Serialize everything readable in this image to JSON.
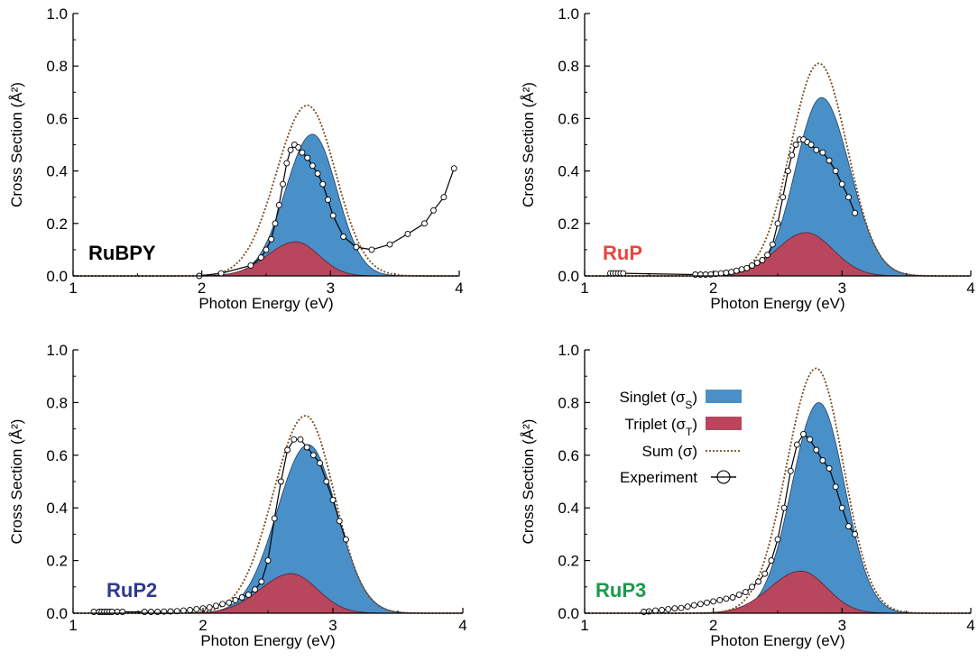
{
  "chart_data": [
    {
      "type": "area",
      "label": "RuBPY",
      "label_color": "#000000",
      "xlabel": "Photon Energy (eV)",
      "ylabel": "Cross Section (Å²)",
      "xlim": [
        1,
        4
      ],
      "ylim": [
        0,
        1.0
      ],
      "xticks": [
        "1",
        "2",
        "3",
        "4"
      ],
      "yticks": [
        "0.0",
        "0.2",
        "0.4",
        "0.6",
        "0.8",
        "1.0"
      ],
      "series": [
        {
          "kind": "singlet",
          "mu": 2.86,
          "s_left": 0.21,
          "s_right": 0.19,
          "peak": 0.54
        },
        {
          "kind": "triplet",
          "mu": 2.73,
          "s_left": 0.22,
          "s_right": 0.18,
          "peak": 0.13
        },
        {
          "kind": "sum",
          "mu": 2.82,
          "s_left": 0.24,
          "s_right": 0.22,
          "peak": 0.65
        }
      ],
      "experiment": {
        "x": [
          1.98,
          2.15,
          2.38,
          2.46,
          2.5,
          2.54,
          2.57,
          2.6,
          2.63,
          2.66,
          2.69,
          2.72,
          2.75,
          2.78,
          2.82,
          2.86,
          2.9,
          2.94,
          2.98,
          3.02,
          3.1,
          3.2,
          3.32,
          3.46,
          3.6,
          3.73,
          3.8,
          3.88,
          3.96
        ],
        "y": [
          0.0,
          0.01,
          0.04,
          0.07,
          0.1,
          0.14,
          0.2,
          0.27,
          0.35,
          0.43,
          0.48,
          0.5,
          0.49,
          0.47,
          0.45,
          0.42,
          0.39,
          0.35,
          0.29,
          0.23,
          0.15,
          0.11,
          0.1,
          0.12,
          0.16,
          0.2,
          0.25,
          0.3,
          0.41
        ]
      }
    },
    {
      "type": "area",
      "label": "RuP",
      "label_color": "#e8463f",
      "xlabel": "Photon Energy (eV)",
      "ylabel": "Cross Section (Å²)",
      "xlim": [
        1,
        4
      ],
      "ylim": [
        0,
        1.0
      ],
      "xticks": [
        "1",
        "2",
        "3",
        "4"
      ],
      "yticks": [
        "0.0",
        "0.2",
        "0.4",
        "0.6",
        "0.8",
        "1.0"
      ],
      "series": [
        {
          "kind": "singlet",
          "mu": 2.84,
          "s_left": 0.2,
          "s_right": 0.22,
          "peak": 0.68
        },
        {
          "kind": "triplet",
          "mu": 2.72,
          "s_left": 0.23,
          "s_right": 0.21,
          "peak": 0.165
        },
        {
          "kind": "sum",
          "mu": 2.82,
          "s_left": 0.22,
          "s_right": 0.22,
          "peak": 0.81
        }
      ],
      "experiment": {
        "x": [
          1.2,
          1.22,
          1.24,
          1.26,
          1.28,
          1.3,
          1.86,
          1.9,
          1.94,
          1.98,
          2.02,
          2.06,
          2.1,
          2.14,
          2.18,
          2.22,
          2.26,
          2.3,
          2.34,
          2.38,
          2.42,
          2.46,
          2.5,
          2.54,
          2.58,
          2.61,
          2.64,
          2.67,
          2.7,
          2.73,
          2.76,
          2.8,
          2.85,
          2.9,
          2.95,
          3.0,
          3.05,
          3.1
        ],
        "y": [
          0.01,
          0.01,
          0.01,
          0.01,
          0.01,
          0.01,
          0.005,
          0.005,
          0.005,
          0.006,
          0.008,
          0.01,
          0.012,
          0.015,
          0.02,
          0.025,
          0.03,
          0.04,
          0.05,
          0.06,
          0.08,
          0.12,
          0.2,
          0.3,
          0.4,
          0.46,
          0.5,
          0.52,
          0.52,
          0.51,
          0.5,
          0.48,
          0.47,
          0.44,
          0.4,
          0.35,
          0.3,
          0.24
        ]
      }
    },
    {
      "type": "area",
      "label": "RuP2",
      "label_color": "#2e3a8c",
      "xlabel": "Photon Energy (eV)",
      "ylabel": "Cross Section (Å²)",
      "xlim": [
        1,
        4
      ],
      "ylim": [
        0,
        1.0
      ],
      "xticks": [
        "1",
        "2",
        "3",
        "4"
      ],
      "yticks": [
        "0.0",
        "0.2",
        "0.4",
        "0.6",
        "0.8",
        "1.0"
      ],
      "series": [
        {
          "kind": "singlet",
          "mu": 2.81,
          "s_left": 0.24,
          "s_right": 0.22,
          "peak": 0.64
        },
        {
          "kind": "triplet",
          "mu": 2.68,
          "s_left": 0.24,
          "s_right": 0.2,
          "peak": 0.15
        },
        {
          "kind": "sum",
          "mu": 2.79,
          "s_left": 0.25,
          "s_right": 0.22,
          "peak": 0.75
        }
      ],
      "experiment": {
        "x": [
          1.16,
          1.2,
          1.22,
          1.24,
          1.26,
          1.28,
          1.3,
          1.34,
          1.38,
          1.55,
          1.6,
          1.65,
          1.7,
          1.75,
          1.8,
          1.85,
          1.9,
          1.95,
          2.0,
          2.05,
          2.1,
          2.15,
          2.2,
          2.25,
          2.3,
          2.35,
          2.4,
          2.45,
          2.5,
          2.55,
          2.6,
          2.65,
          2.7,
          2.75,
          2.8,
          2.85,
          2.9,
          2.95,
          3.0,
          3.05,
          3.1
        ],
        "y": [
          0.005,
          0.005,
          0.005,
          0.005,
          0.005,
          0.005,
          0.005,
          0.005,
          0.005,
          0.005,
          0.005,
          0.005,
          0.006,
          0.007,
          0.008,
          0.01,
          0.012,
          0.015,
          0.018,
          0.022,
          0.028,
          0.035,
          0.04,
          0.05,
          0.06,
          0.07,
          0.09,
          0.12,
          0.2,
          0.36,
          0.5,
          0.62,
          0.66,
          0.66,
          0.63,
          0.6,
          0.57,
          0.5,
          0.43,
          0.35,
          0.28
        ]
      }
    },
    {
      "type": "area",
      "label": "RuP3",
      "label_color": "#1a9a4a",
      "xlabel": "Photon Energy (eV)",
      "ylabel": "Cross Section (Å²)",
      "xlim": [
        1,
        4
      ],
      "ylim": [
        0,
        1.0
      ],
      "xticks": [
        "1",
        "2",
        "3",
        "4"
      ],
      "yticks": [
        "0.0",
        "0.2",
        "0.4",
        "0.6",
        "0.8",
        "1.0"
      ],
      "series": [
        {
          "kind": "singlet",
          "mu": 2.82,
          "s_left": 0.21,
          "s_right": 0.2,
          "peak": 0.8
        },
        {
          "kind": "triplet",
          "mu": 2.68,
          "s_left": 0.24,
          "s_right": 0.2,
          "peak": 0.16
        },
        {
          "kind": "sum",
          "mu": 2.8,
          "s_left": 0.23,
          "s_right": 0.21,
          "peak": 0.93
        }
      ],
      "experiment": {
        "x": [
          1.46,
          1.5,
          1.55,
          1.6,
          1.65,
          1.7,
          1.75,
          1.8,
          1.85,
          1.9,
          1.95,
          2.0,
          2.05,
          2.1,
          2.15,
          2.2,
          2.25,
          2.3,
          2.35,
          2.4,
          2.45,
          2.5,
          2.55,
          2.6,
          2.65,
          2.7,
          2.75,
          2.8,
          2.85,
          2.9,
          2.95,
          3.0,
          3.05,
          3.1
        ],
        "y": [
          0.005,
          0.007,
          0.01,
          0.012,
          0.015,
          0.018,
          0.02,
          0.025,
          0.03,
          0.035,
          0.04,
          0.045,
          0.05,
          0.055,
          0.06,
          0.07,
          0.08,
          0.1,
          0.12,
          0.15,
          0.2,
          0.28,
          0.4,
          0.54,
          0.64,
          0.68,
          0.66,
          0.62,
          0.58,
          0.55,
          0.48,
          0.4,
          0.33,
          0.3
        ]
      },
      "legend": {
        "placement": "upper-left",
        "items": [
          {
            "kind": "singlet",
            "text": "Singlet (σ",
            "sub": "S",
            "tail": ")"
          },
          {
            "kind": "triplet",
            "text": "Triplet (σ",
            "sub": "T",
            "tail": ")"
          },
          {
            "kind": "sum",
            "text": "Sum (σ)",
            "sub": "",
            "tail": ""
          },
          {
            "kind": "experiment",
            "text": "Experiment",
            "sub": "",
            "tail": ""
          }
        ]
      }
    }
  ],
  "colors": {
    "singlet_fill": "#4a90c8",
    "triplet_fill": "#b8475e",
    "sum_line": "#7a4a1e",
    "experiment": "#000000"
  }
}
